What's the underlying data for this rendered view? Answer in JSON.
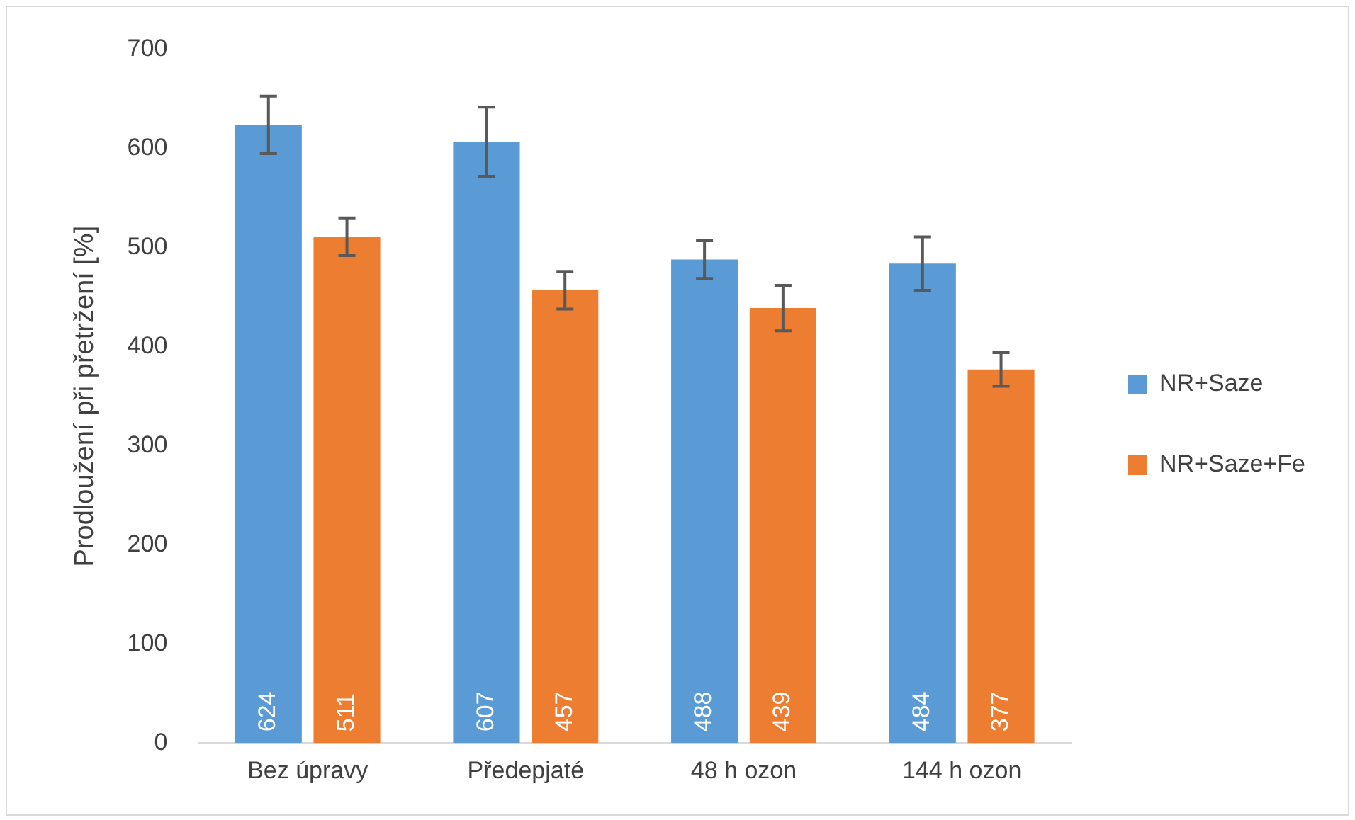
{
  "chart_data": {
    "type": "bar",
    "ylabel": "Prodloužení při přetržení [%]",
    "categories": [
      "Bez úpravy",
      "Předepjaté",
      "48 h ozon",
      "144 h ozon"
    ],
    "series": [
      {
        "name": "NR+Saze",
        "color": "#5b9bd5",
        "values": [
          624,
          607,
          488,
          484
        ],
        "errors": [
          29,
          35,
          19,
          27
        ]
      },
      {
        "name": "NR+Saze+Fe",
        "color": "#ed7d31",
        "values": [
          511,
          457,
          439,
          377
        ],
        "errors": [
          19,
          19,
          23,
          17
        ]
      }
    ],
    "ylim": [
      0,
      700
    ],
    "yticks": [
      0,
      100,
      200,
      300,
      400,
      500,
      600,
      700
    ],
    "grid": false,
    "legend": "right",
    "data_labels": true
  }
}
